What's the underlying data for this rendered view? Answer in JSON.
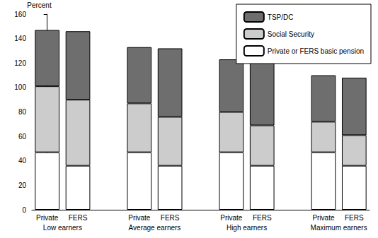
{
  "chart_data": {
    "type": "bar",
    "stacked": true,
    "y_label": "Percent",
    "categories": [
      "Private",
      "FERS",
      null,
      "Private",
      "FERS",
      null,
      "Private",
      "FERS",
      null,
      "Private",
      "FERS"
    ],
    "group_labels": [
      "Low earners",
      "Average earners",
      "High earners",
      "Maximum earners"
    ],
    "series": [
      {
        "name": "Private or FERS basic pension",
        "color": "#ffffff",
        "values": [
          47,
          36,
          null,
          47,
          36,
          null,
          47,
          36,
          null,
          47,
          36
        ]
      },
      {
        "name": "Social Security",
        "color": "#cccccc",
        "values": [
          54,
          54,
          null,
          40,
          40,
          null,
          33,
          33,
          null,
          25,
          25
        ]
      },
      {
        "name": "TSP/DC",
        "color": "#6e6e6e",
        "values": [
          46,
          56,
          null,
          46,
          56,
          null,
          43,
          53,
          null,
          38,
          47
        ]
      }
    ],
    "ylim": [
      0,
      160
    ],
    "yticks": [
      0,
      20,
      40,
      60,
      80,
      100,
      120,
      140,
      160
    ],
    "grid": false,
    "legend": "upper right"
  }
}
